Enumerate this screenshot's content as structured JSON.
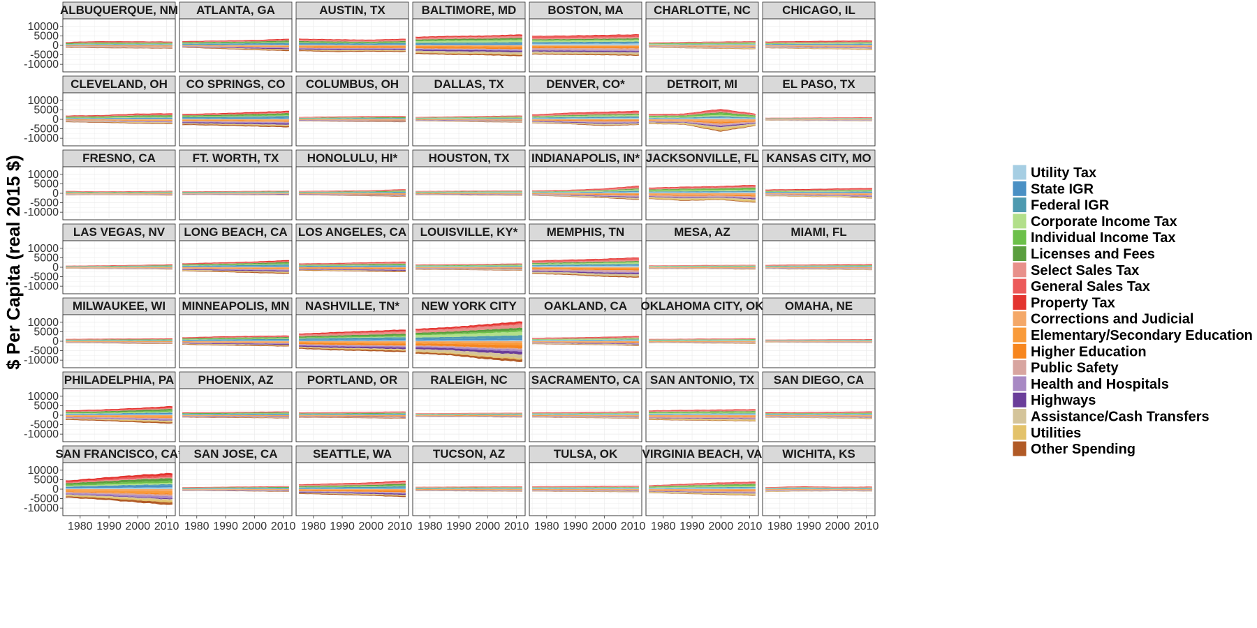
{
  "chart_data": {
    "type": "area",
    "layout": "facet-grid",
    "ylabel": "$ Per Capita (real 2015 $)",
    "xlabel": "",
    "x_ticks": [
      1980,
      1990,
      2000,
      2010
    ],
    "y_ticks": [
      10000,
      5000,
      0,
      -5000,
      -10000
    ],
    "xlim": [
      1974,
      2013
    ],
    "ylim": [
      -14000,
      14000
    ],
    "grid": true,
    "legend_position": "right",
    "legend": [
      {
        "name": "Utility Tax",
        "color": "#a6cee3",
        "kind": "revenue"
      },
      {
        "name": "State IGR",
        "color": "#4a90c4",
        "kind": "revenue"
      },
      {
        "name": "Federal IGR",
        "color": "#4e9ab0",
        "kind": "revenue"
      },
      {
        "name": "Corporate Income Tax",
        "color": "#b2df8a",
        "kind": "revenue"
      },
      {
        "name": "Individual Income Tax",
        "color": "#6cc04a",
        "kind": "revenue"
      },
      {
        "name": "Licenses and Fees",
        "color": "#5a9e3e",
        "kind": "revenue"
      },
      {
        "name": "Select Sales Tax",
        "color": "#e8908a",
        "kind": "revenue"
      },
      {
        "name": "General Sales Tax",
        "color": "#ec5a5a",
        "kind": "revenue"
      },
      {
        "name": "Property Tax",
        "color": "#e3342f",
        "kind": "revenue"
      },
      {
        "name": "Corrections and Judicial",
        "color": "#f4a868",
        "kind": "spending"
      },
      {
        "name": "Elementary/Secondary Education",
        "color": "#f99b3a",
        "kind": "spending"
      },
      {
        "name": "Higher Education",
        "color": "#f7861e",
        "kind": "spending"
      },
      {
        "name": "Public Safety",
        "color": "#d8a5a0",
        "kind": "spending"
      },
      {
        "name": "Health and Hospitals",
        "color": "#a889c4",
        "kind": "spending"
      },
      {
        "name": "Highways",
        "color": "#6a3d9a",
        "kind": "spending"
      },
      {
        "name": "Assistance/Cash Transfers",
        "color": "#d4c49a",
        "kind": "spending"
      },
      {
        "name": "Utilities",
        "color": "#e3c26a",
        "kind": "spending"
      },
      {
        "name": "Other Spending",
        "color": "#b15a26",
        "kind": "spending"
      }
    ],
    "panels": [
      {
        "title": "ALBUQUERQUE, NM",
        "rev": [
          1800,
          2200,
          2100,
          2000
        ],
        "spend": [
          -1300,
          -1500,
          -1600,
          -1700
        ]
      },
      {
        "title": "ATLANTA, GA",
        "rev": [
          2200,
          2500,
          2800,
          3500
        ],
        "spend": [
          -1200,
          -1800,
          -2500,
          -3000
        ]
      },
      {
        "title": "AUSTIN, TX",
        "rev": [
          3500,
          3200,
          3000,
          3500
        ],
        "spend": [
          -3000,
          -3500,
          -3300,
          -3500
        ]
      },
      {
        "title": "BALTIMORE, MD",
        "rev": [
          4500,
          5000,
          5200,
          5800
        ],
        "spend": [
          -4500,
          -5000,
          -5200,
          -5800
        ]
      },
      {
        "title": "BOSTON, MA",
        "rev": [
          5000,
          5200,
          5500,
          5800
        ],
        "spend": [
          -4800,
          -5000,
          -5200,
          -5500
        ]
      },
      {
        "title": "CHARLOTTE, NC",
        "rev": [
          1500,
          1800,
          2000,
          2200
        ],
        "spend": [
          -1200,
          -1500,
          -1800,
          -2000
        ]
      },
      {
        "title": "CHICAGO, IL",
        "rev": [
          2000,
          2200,
          2400,
          2600
        ],
        "spend": [
          -1500,
          -1800,
          -2000,
          -2400
        ]
      },
      {
        "title": "CLEVELAND, OH",
        "rev": [
          2000,
          2200,
          3000,
          3200
        ],
        "spend": [
          -1500,
          -1800,
          -2200,
          -2500
        ]
      },
      {
        "title": "CO SPRINGS, CO",
        "rev": [
          2800,
          3200,
          3800,
          4500
        ],
        "spend": [
          -3000,
          -3300,
          -3800,
          -4200
        ]
      },
      {
        "title": "COLUMBUS, OH",
        "rev": [
          1200,
          1500,
          1700,
          1800
        ],
        "spend": [
          -1000,
          -1200,
          -1400,
          -1500
        ]
      },
      {
        "title": "DALLAS, TX",
        "rev": [
          1200,
          1500,
          1800,
          2000
        ],
        "spend": [
          -1000,
          -1200,
          -1500,
          -1700
        ]
      },
      {
        "title": "DENVER, CO*",
        "rev": [
          2500,
          3500,
          4000,
          4500
        ],
        "spend": [
          -2000,
          -2500,
          -3500,
          -3000
        ]
      },
      {
        "title": "DETROIT, MI",
        "rev": [
          2800,
          3000,
          5500,
          3000
        ],
        "spend": [
          -2500,
          -2800,
          -6500,
          -3500
        ]
      },
      {
        "title": "EL PASO, TX",
        "rev": [
          800,
          900,
          1000,
          1100
        ],
        "spend": [
          -700,
          -800,
          -900,
          -1000
        ]
      },
      {
        "title": "FRESNO, CA",
        "rev": [
          1200,
          1000,
          1100,
          1300
        ],
        "spend": [
          -1000,
          -900,
          -1000,
          -1200
        ]
      },
      {
        "title": "FT. WORTH, TX",
        "rev": [
          1000,
          1100,
          1200,
          1300
        ],
        "spend": [
          -800,
          -900,
          -1000,
          -1100
        ]
      },
      {
        "title": "HONOLULU, HI*",
        "rev": [
          1200,
          1400,
          1600,
          2200
        ],
        "spend": [
          -1000,
          -1200,
          -1500,
          -1800
        ]
      },
      {
        "title": "HOUSTON, TX",
        "rev": [
          1200,
          1300,
          1400,
          1500
        ],
        "spend": [
          -1000,
          -1100,
          -1200,
          -1300
        ]
      },
      {
        "title": "INDIANAPOLIS, IN*",
        "rev": [
          1500,
          1800,
          2500,
          4000
        ],
        "spend": [
          -1200,
          -1800,
          -2500,
          -3500
        ]
      },
      {
        "title": "JACKSONVILLE, FL",
        "rev": [
          3000,
          3500,
          3800,
          4500
        ],
        "spend": [
          -3000,
          -4000,
          -3500,
          -5000
        ]
      },
      {
        "title": "KANSAS CITY, MO",
        "rev": [
          2000,
          2200,
          2500,
          2800
        ],
        "spend": [
          -1500,
          -1800,
          -2000,
          -2800
        ]
      },
      {
        "title": "LAS VEGAS, NV",
        "rev": [
          800,
          1000,
          1200,
          1500
        ],
        "spend": [
          -700,
          -900,
          -1000,
          -1200
        ]
      },
      {
        "title": "LONG BEACH, CA",
        "rev": [
          2000,
          2500,
          3000,
          3800
        ],
        "spend": [
          -2000,
          -2500,
          -3000,
          -3500
        ]
      },
      {
        "title": "LOS ANGELES, CA",
        "rev": [
          2000,
          2200,
          2600,
          3000
        ],
        "spend": [
          -1800,
          -2000,
          -2300,
          -2600
        ]
      },
      {
        "title": "LOUISVILLE, KY*",
        "rev": [
          1500,
          1600,
          1800,
          2000
        ],
        "spend": [
          -1300,
          -1400,
          -1600,
          -1800
        ]
      },
      {
        "title": "MEMPHIS, TN",
        "rev": [
          3500,
          4000,
          4500,
          5200
        ],
        "spend": [
          -3500,
          -4000,
          -5000,
          -5500
        ]
      },
      {
        "title": "MESA, AZ",
        "rev": [
          1000,
          1100,
          1200,
          1300
        ],
        "spend": [
          -900,
          -1000,
          -1100,
          -1200
        ]
      },
      {
        "title": "MIAMI, FL",
        "rev": [
          1200,
          1400,
          1500,
          1700
        ],
        "spend": [
          -1000,
          -1200,
          -1300,
          -1500
        ]
      },
      {
        "title": "MILWAUKEE, WI",
        "rev": [
          1200,
          1300,
          1400,
          1500
        ],
        "spend": [
          -1000,
          -1100,
          -1300,
          -1400
        ]
      },
      {
        "title": "MINNEAPOLIS, MN",
        "rev": [
          2000,
          2500,
          2800,
          3000
        ],
        "spend": [
          -1800,
          -2200,
          -2500,
          -2800
        ]
      },
      {
        "title": "NASHVILLE, TN*",
        "rev": [
          4000,
          4800,
          5500,
          6200
        ],
        "spend": [
          -4000,
          -4800,
          -5200,
          -5800
        ]
      },
      {
        "title": "NEW YORK CITY",
        "rev": [
          6500,
          7500,
          9000,
          10500
        ],
        "spend": [
          -6500,
          -7500,
          -9500,
          -11000
        ]
      },
      {
        "title": "OAKLAND, CA",
        "rev": [
          1800,
          2000,
          2300,
          2800
        ],
        "spend": [
          -1500,
          -1800,
          -2000,
          -2500
        ]
      },
      {
        "title": "OKLAHOMA CITY, OK",
        "rev": [
          1200,
          1300,
          1400,
          1600
        ],
        "spend": [
          -1000,
          -1100,
          -1200,
          -1400
        ]
      },
      {
        "title": "OMAHA, NE",
        "rev": [
          800,
          900,
          1000,
          1100
        ],
        "spend": [
          -700,
          -800,
          -900,
          -1000
        ]
      },
      {
        "title": "PHILADELPHIA, PA",
        "rev": [
          2500,
          3000,
          3800,
          4800
        ],
        "spend": [
          -2500,
          -3000,
          -3800,
          -4500
        ]
      },
      {
        "title": "PHOENIX, AZ",
        "rev": [
          1500,
          1600,
          1800,
          2000
        ],
        "spend": [
          -1200,
          -1400,
          -1500,
          -1700
        ]
      },
      {
        "title": "PORTLAND, OR",
        "rev": [
          1500,
          1600,
          1800,
          2000
        ],
        "spend": [
          -1300,
          -1400,
          -1600,
          -1800
        ]
      },
      {
        "title": "RALEIGH, NC",
        "rev": [
          1000,
          1100,
          1200,
          1300
        ],
        "spend": [
          -900,
          -1000,
          -1100,
          -1200
        ]
      },
      {
        "title": "SACRAMENTO, CA",
        "rev": [
          1500,
          1600,
          1800,
          2000
        ],
        "spend": [
          -1200,
          -1400,
          -1600,
          -1800
        ]
      },
      {
        "title": "SAN ANTONIO, TX",
        "rev": [
          2500,
          2800,
          3000,
          3200
        ],
        "spend": [
          -2500,
          -2800,
          -3000,
          -3200
        ]
      },
      {
        "title": "SAN DIEGO, CA",
        "rev": [
          1500,
          1600,
          1800,
          2000
        ],
        "spend": [
          -1300,
          -1400,
          -1700,
          -1900
        ]
      },
      {
        "title": "SAN FRANCISCO, CA*",
        "rev": [
          4500,
          6000,
          7500,
          8500
        ],
        "spend": [
          -4500,
          -5500,
          -7000,
          -8500
        ]
      },
      {
        "title": "SAN JOSE, CA",
        "rev": [
          1000,
          1200,
          1400,
          1600
        ],
        "spend": [
          -800,
          -1000,
          -1200,
          -1400
        ]
      },
      {
        "title": "SEATTLE, WA",
        "rev": [
          2500,
          3000,
          3500,
          4500
        ],
        "spend": [
          -2500,
          -3000,
          -3500,
          -4200
        ]
      },
      {
        "title": "TUCSON, AZ",
        "rev": [
          1200,
          1300,
          1400,
          1500
        ],
        "spend": [
          -1000,
          -1100,
          -1200,
          -1300
        ]
      },
      {
        "title": "TULSA, OK",
        "rev": [
          1500,
          1600,
          1700,
          1800
        ],
        "spend": [
          -1200,
          -1400,
          -1500,
          -1600
        ]
      },
      {
        "title": "VIRGINIA BEACH, VA",
        "rev": [
          2000,
          2800,
          3500,
          4000
        ],
        "spend": [
          -2000,
          -2500,
          -3000,
          -3500
        ]
      },
      {
        "title": "WICHITA, KS",
        "rev": [
          1000,
          1500,
          1200,
          1300
        ],
        "spend": [
          -1500,
          -1200,
          -1100,
          -1200
        ]
      }
    ]
  }
}
